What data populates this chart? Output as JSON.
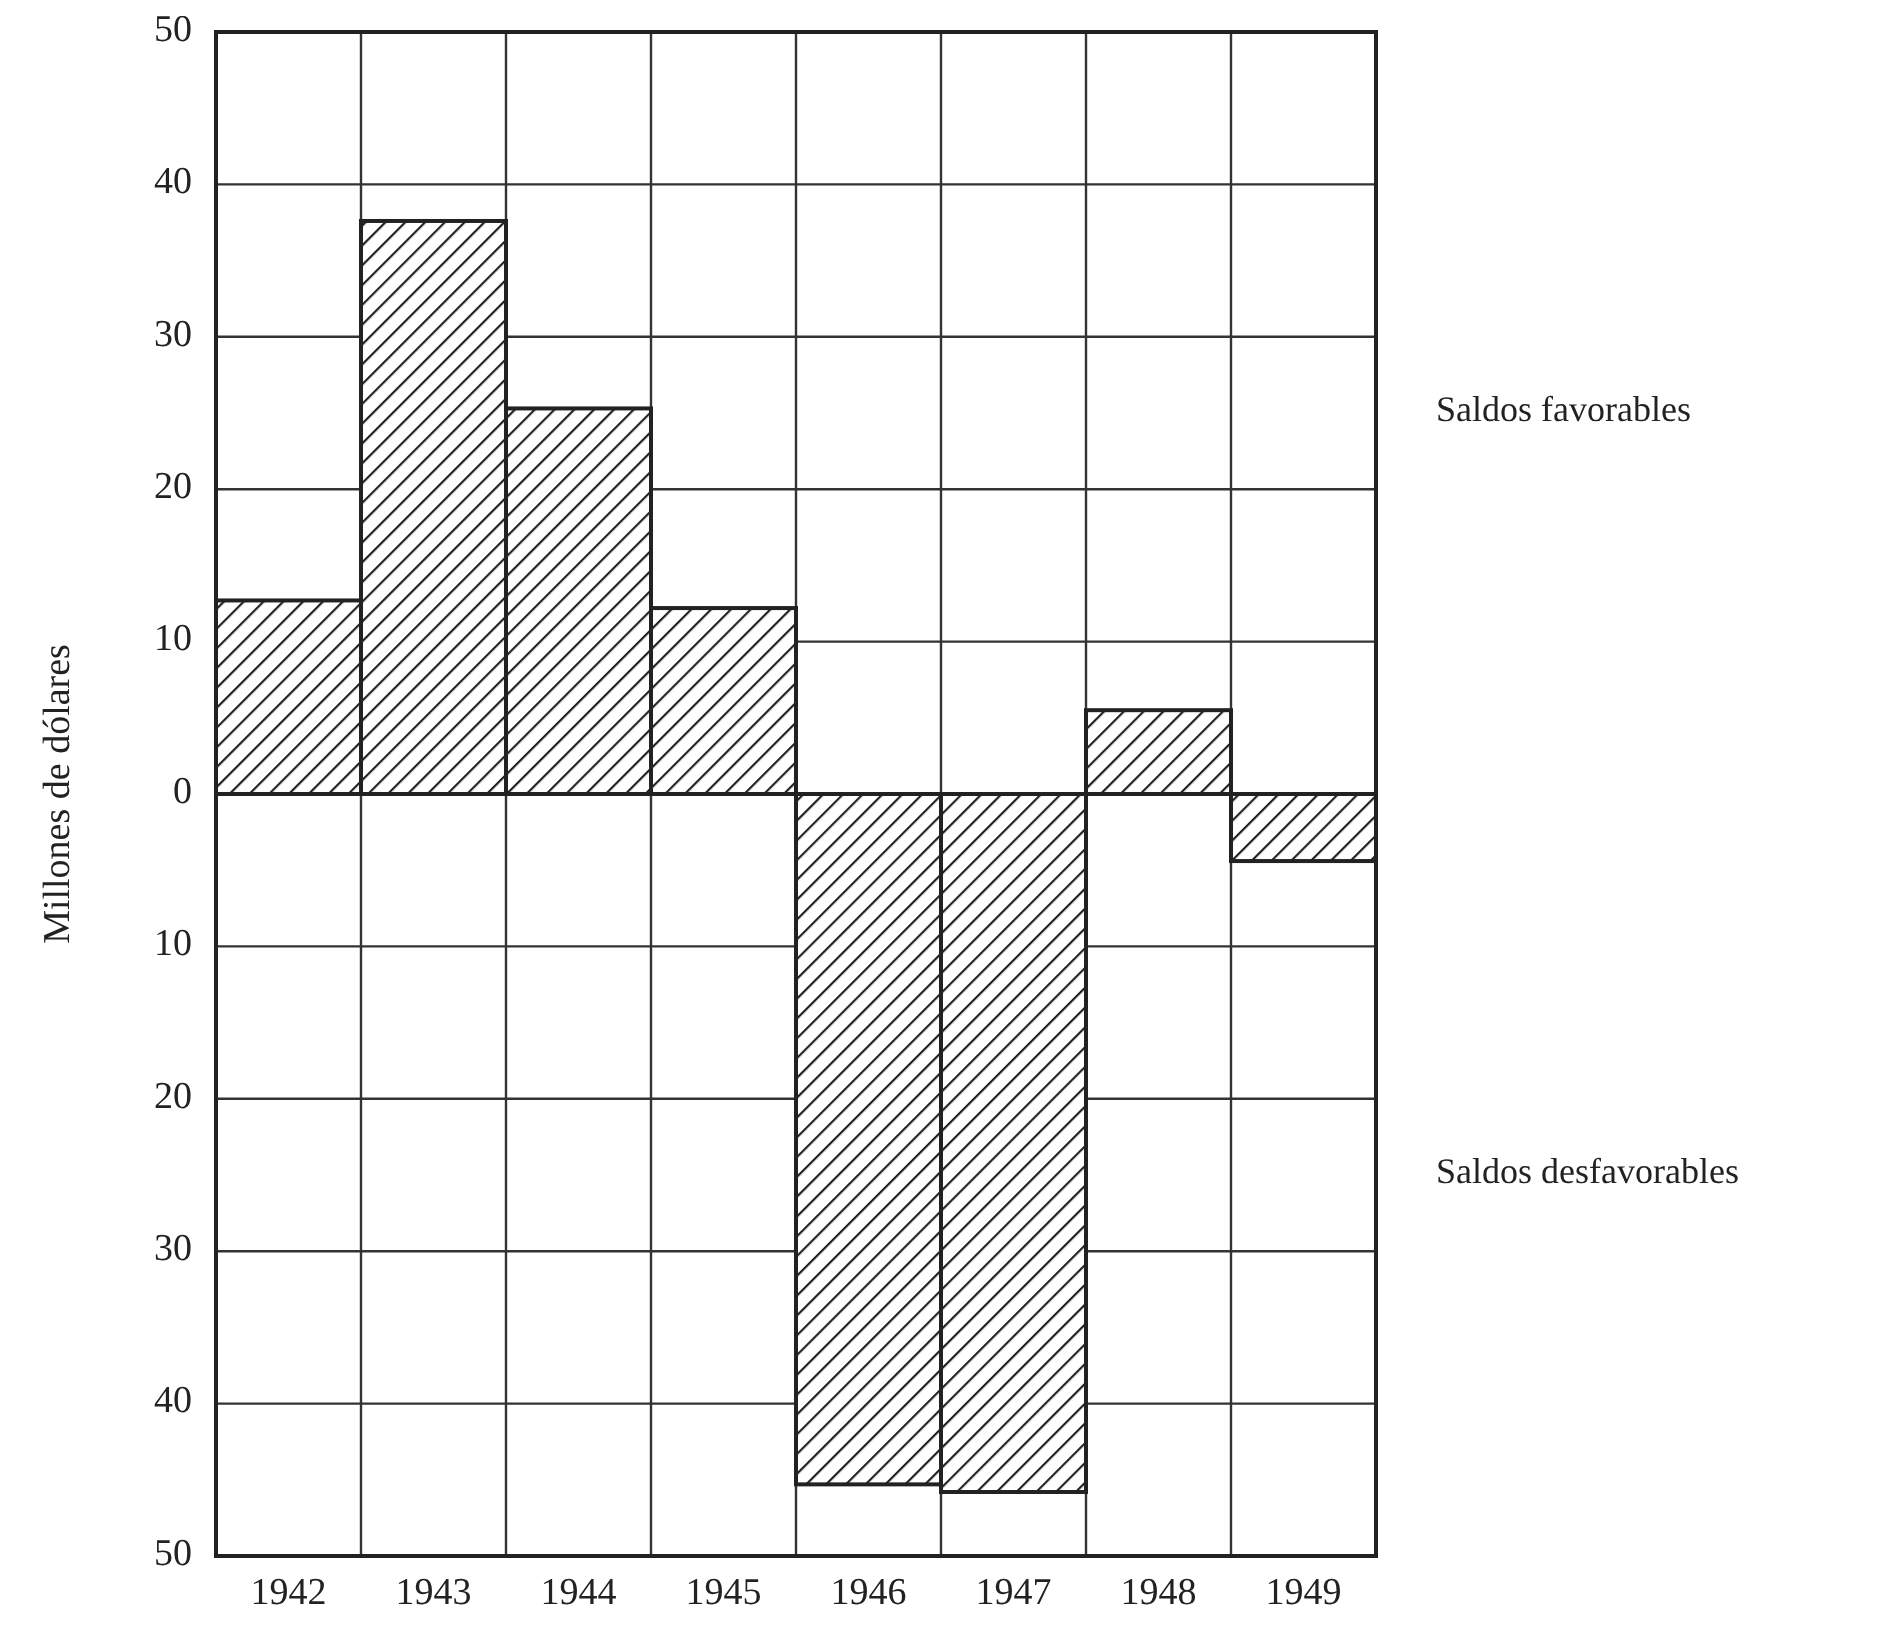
{
  "chart_data": {
    "type": "bar",
    "ylabel": "Millones de dólares",
    "categories": [
      "1942",
      "1943",
      "1944",
      "1945",
      "1946",
      "1947",
      "1948",
      "1949"
    ],
    "values": [
      12.7,
      37.6,
      25.3,
      12.2,
      -45.3,
      -45.8,
      5.5,
      -4.4
    ],
    "color": "#222222",
    "ylim": [
      -50,
      50
    ],
    "yticks": [
      {
        "value": -50,
        "label": "50"
      },
      {
        "value": -40,
        "label": "40"
      },
      {
        "value": -30,
        "label": "30"
      },
      {
        "value": -20,
        "label": "20"
      },
      {
        "value": -10,
        "label": "10"
      },
      0,
      10,
      20,
      30,
      40,
      50
    ],
    "grid": true,
    "annotations": [
      "Saldos favorables",
      "Saldos desfavorables"
    ]
  }
}
